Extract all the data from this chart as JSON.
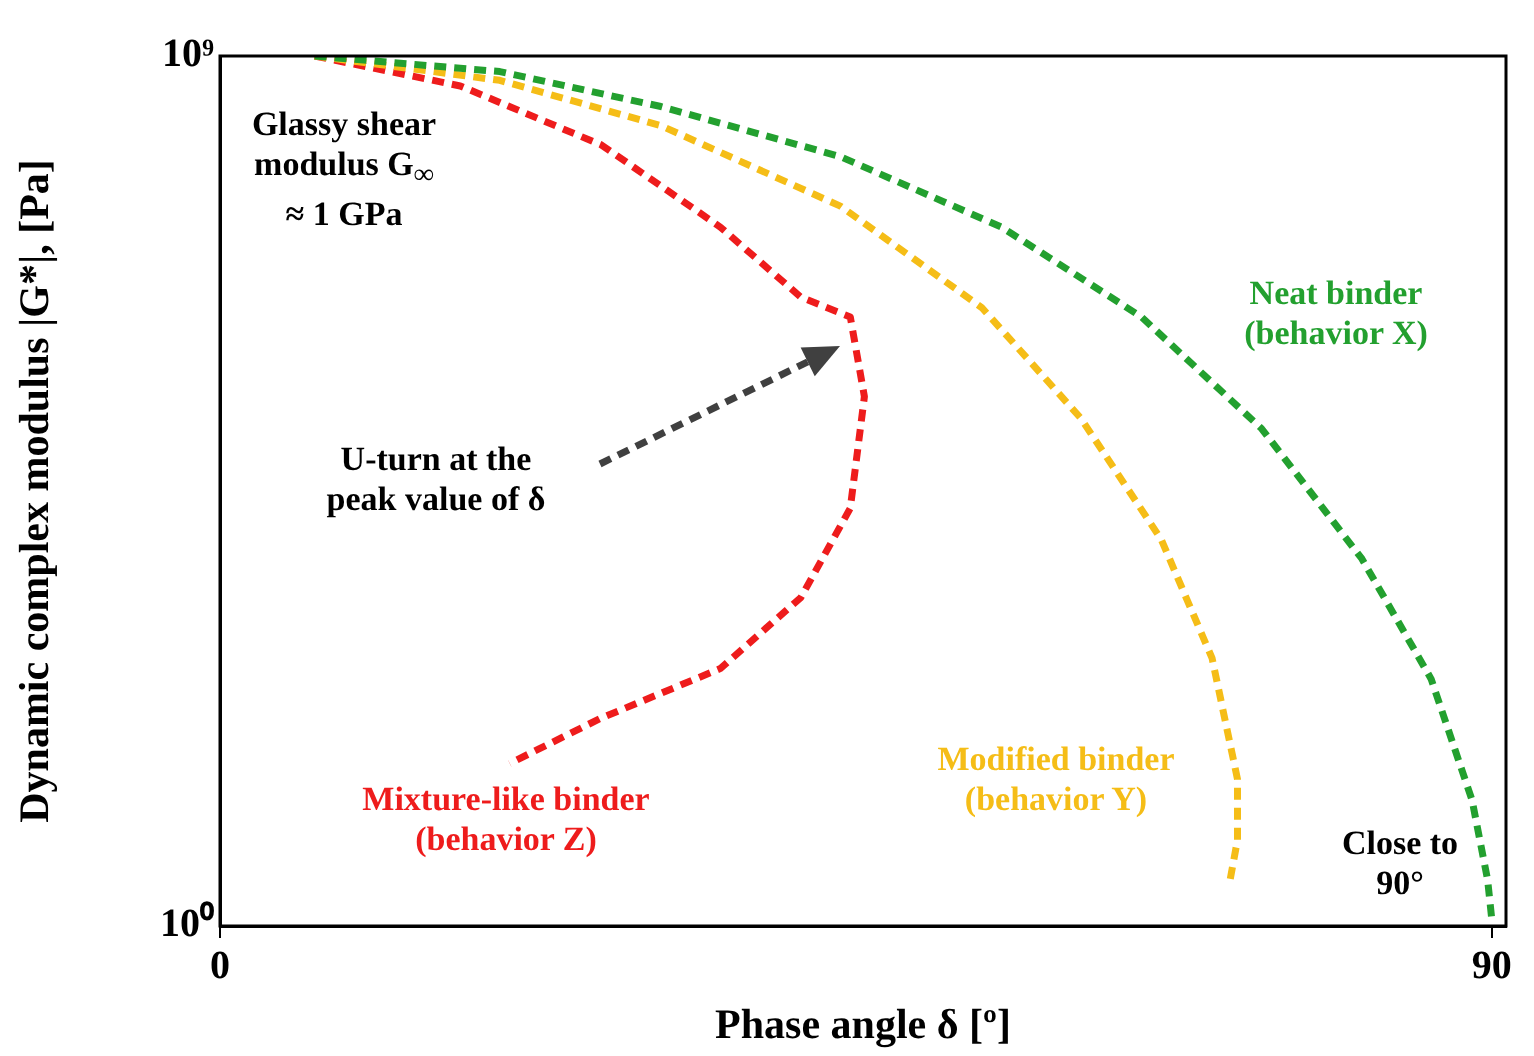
{
  "chart_data": {
    "type": "line",
    "xlabel": "Phase angle δ [º]",
    "ylabel": "Dynamic complex modulus |G*|, [Pa]",
    "xlim": [
      0,
      91
    ],
    "xticks": [
      0,
      90
    ],
    "ylim": [
      1,
      1000000000
    ],
    "yticks": [
      {
        "value": 1,
        "label": "10⁰"
      },
      {
        "value": 1000000000,
        "label": "10⁹"
      }
    ],
    "log": "y",
    "grid": false,
    "legend": false,
    "marker": "none",
    "line_style": "dashed",
    "series": [
      {
        "name": "Neat binder (behavior X)",
        "color": "#23a02f",
        "x": [
          6.7,
          19.8,
          31.2,
          43.9,
          55.3,
          65.2,
          73.7,
          80.8,
          85.7,
          88.6,
          89.7,
          90
        ],
        "values": [
          1000000000,
          690000000,
          300000000,
          91000000,
          17000000,
          2000000,
          140000,
          6300,
          360,
          20,
          3,
          1.15
        ]
      },
      {
        "name": "Modified binder (behavior Y)",
        "color": "#f5bd17",
        "x": [
          6.7,
          19.8,
          31.2,
          43.9,
          53.9,
          60.9,
          66.6,
          70.2,
          72.0,
          72.0,
          71.4
        ],
        "values": [
          1000000000,
          560000000,
          190000000,
          28000000,
          2500000,
          180000,
          10000,
          590,
          33,
          7.8,
          2.6
        ]
      },
      {
        "name": "Mixture-like binder (behavior Z)",
        "color": "#ee1c1c",
        "x": [
          6.7,
          17.0,
          27.0,
          35.4,
          41.1,
          44.6,
          45.6,
          44.6,
          41.1,
          35.4,
          26.9,
          20.5
        ],
        "values": [
          1000000000,
          490000000,
          120000000,
          17000000,
          3200000,
          2000000,
          300000,
          21000,
          2500,
          460,
          140,
          48
        ]
      }
    ],
    "annotations": [
      "Glassy shear modulus G$_{∞}$ ≈ 1 GPa",
      "U-turn at the peak value of δ",
      "Close to 90°"
    ]
  }
}
